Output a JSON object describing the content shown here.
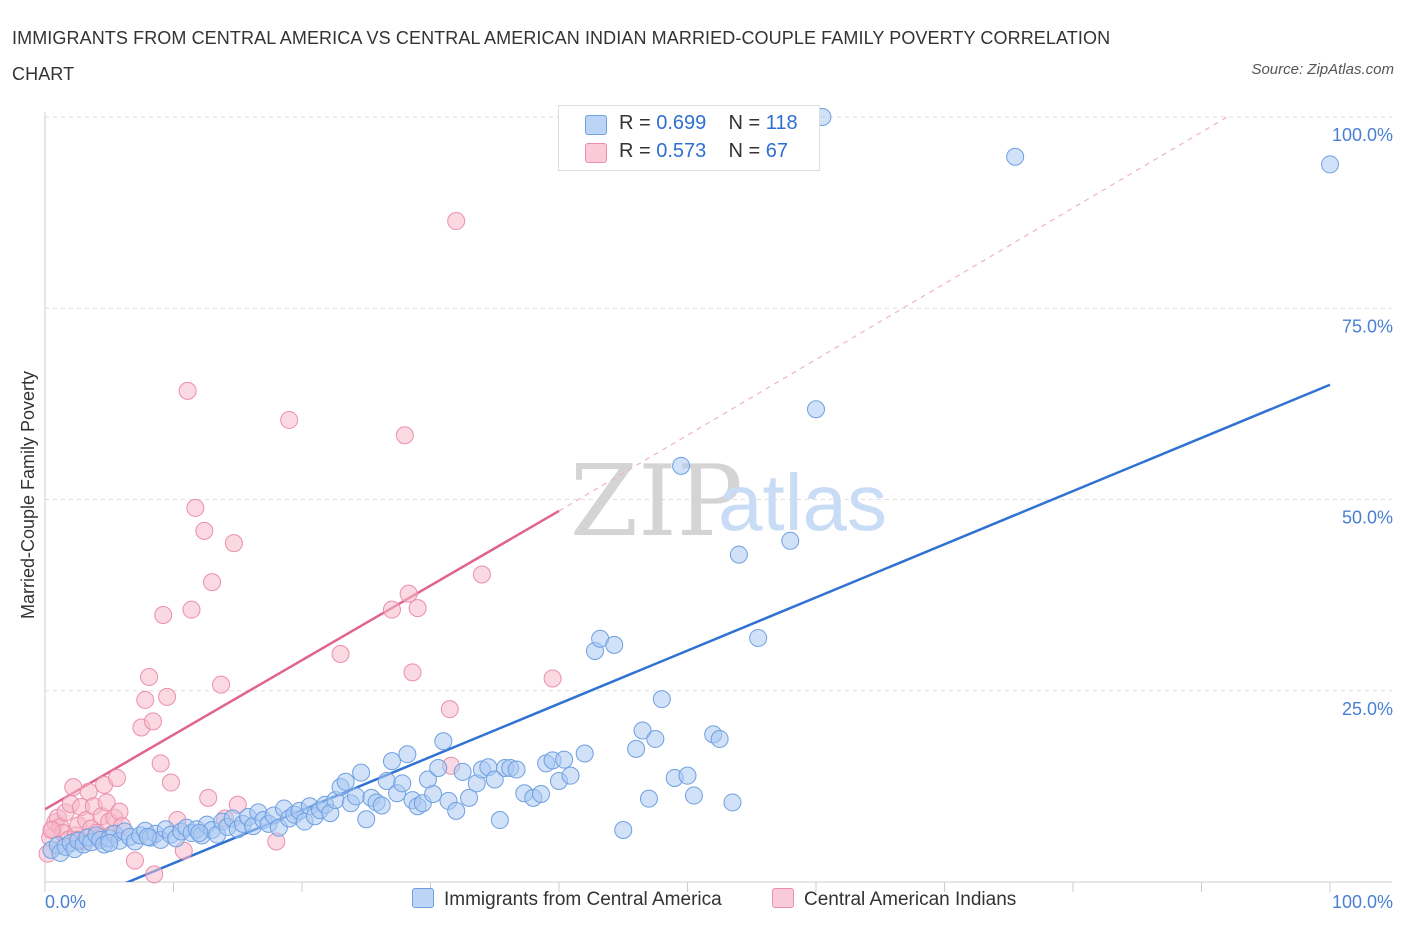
{
  "title": "IMMIGRANTS FROM CENTRAL AMERICA VS CENTRAL AMERICAN INDIAN MARRIED-COUPLE FAMILY POVERTY CORRELATION CHART",
  "source": "Source: ZipAtlas.com",
  "watermark": "ZIPatlas",
  "colors": {
    "blue_fill": "#a9c8f2",
    "blue_stroke": "#6fa0e0",
    "blue_line": "#2f72d3",
    "pink_fill": "#f6b9cc",
    "pink_stroke": "#ec8fac",
    "pink_line": "#e0648e",
    "tick_text": "#4a7fd4",
    "grid": "#dddddd"
  },
  "legend": {
    "rows": [
      {
        "r_label": "R =",
        "r_value": "0.699",
        "n_label": "N =",
        "n_value": "118",
        "series": "blue"
      },
      {
        "r_label": "R =",
        "r_value": "0.573",
        "n_label": "N =",
        "n_value": "67",
        "series": "pink"
      }
    ]
  },
  "bottom_legend": {
    "items": [
      "Immigrants from Central America",
      "Central American Indians"
    ]
  },
  "chart_data": {
    "type": "scatter",
    "title": "IMMIGRANTS FROM CENTRAL AMERICA VS CENTRAL AMERICAN INDIAN MARRIED-COUPLE FAMILY POVERTY CORRELATION CHART",
    "xlabel": "",
    "ylabel": "Married-Couple Family Poverty",
    "xlim": [
      0,
      100
    ],
    "ylim": [
      0,
      100
    ],
    "x_tick_labels": [
      "0.0%",
      "100.0%"
    ],
    "y_ticks": [
      25,
      50,
      75,
      100
    ],
    "y_tick_labels": [
      "25.0%",
      "50.0%",
      "75.0%",
      "100.0%"
    ],
    "grid": true,
    "legend_position": "top-center",
    "series": [
      {
        "name": "Immigrants from Central America",
        "color": "#a9c8f2",
        "R": 0.699,
        "N": 118,
        "trend": {
          "x": [
            0,
            100
          ],
          "y": [
            -4.5,
            65
          ]
        },
        "points": [
          [
            0.5,
            4.2
          ],
          [
            1,
            4.8
          ],
          [
            1.2,
            3.8
          ],
          [
            1.6,
            4.6
          ],
          [
            2,
            5.1
          ],
          [
            2.3,
            4.3
          ],
          [
            2.6,
            5.4
          ],
          [
            3,
            4.9
          ],
          [
            3.3,
            5.8
          ],
          [
            3.6,
            5.2
          ],
          [
            4,
            6.1
          ],
          [
            4.3,
            5.5
          ],
          [
            4.6,
            4.9
          ],
          [
            5,
            5.7
          ],
          [
            5.4,
            6.3
          ],
          [
            5.8,
            5.4
          ],
          [
            6.2,
            6.6
          ],
          [
            6.6,
            5.9
          ],
          [
            7,
            5.3
          ],
          [
            7.4,
            6.1
          ],
          [
            7.8,
            6.7
          ],
          [
            8.2,
            5.8
          ],
          [
            8.6,
            6.3
          ],
          [
            9,
            5.5
          ],
          [
            9.4,
            6.9
          ],
          [
            9.8,
            6.2
          ],
          [
            10.2,
            5.7
          ],
          [
            10.6,
            6.6
          ],
          [
            11,
            7.1
          ],
          [
            11.4,
            6.4
          ],
          [
            11.8,
            6.9
          ],
          [
            12.2,
            6.1
          ],
          [
            12.6,
            7.5
          ],
          [
            13,
            6.8
          ],
          [
            13.4,
            6.2
          ],
          [
            13.8,
            7.9
          ],
          [
            14.2,
            7.2
          ],
          [
            14.6,
            8.3
          ],
          [
            15,
            6.9
          ],
          [
            15.4,
            7.6
          ],
          [
            15.8,
            8.5
          ],
          [
            16.2,
            7.3
          ],
          [
            16.6,
            9.1
          ],
          [
            17,
            8.1
          ],
          [
            17.4,
            7.6
          ],
          [
            17.8,
            8.7
          ],
          [
            18.2,
            7.1
          ],
          [
            18.6,
            9.6
          ],
          [
            19,
            8.3
          ],
          [
            19.4,
            8.8
          ],
          [
            19.8,
            9.3
          ],
          [
            20.2,
            7.9
          ],
          [
            20.6,
            9.9
          ],
          [
            21,
            8.6
          ],
          [
            21.4,
            9.4
          ],
          [
            21.8,
            10.1
          ],
          [
            22.2,
            9.0
          ],
          [
            22.6,
            10.7
          ],
          [
            23,
            12.4
          ],
          [
            23.4,
            13.1
          ],
          [
            23.8,
            10.3
          ],
          [
            24.2,
            11.2
          ],
          [
            24.6,
            14.3
          ],
          [
            25,
            8.2
          ],
          [
            25.4,
            11.0
          ],
          [
            25.8,
            10.4
          ],
          [
            26.2,
            10.0
          ],
          [
            26.6,
            13.2
          ],
          [
            27,
            15.8
          ],
          [
            27.4,
            11.6
          ],
          [
            27.8,
            12.9
          ],
          [
            28.2,
            16.7
          ],
          [
            28.6,
            10.7
          ],
          [
            29,
            9.9
          ],
          [
            29.4,
            10.3
          ],
          [
            29.8,
            13.4
          ],
          [
            30.2,
            11.5
          ],
          [
            30.6,
            14.9
          ],
          [
            31,
            18.4
          ],
          [
            31.4,
            10.6
          ],
          [
            32,
            9.3
          ],
          [
            32.5,
            14.4
          ],
          [
            33,
            11.0
          ],
          [
            33.6,
            12.9
          ],
          [
            34,
            14.7
          ],
          [
            34.5,
            15.0
          ],
          [
            35,
            13.4
          ],
          [
            35.4,
            8.1
          ],
          [
            35.8,
            14.9
          ],
          [
            36.2,
            14.9
          ],
          [
            36.7,
            14.7
          ],
          [
            37.3,
            11.6
          ],
          [
            38,
            11.0
          ],
          [
            38.6,
            11.5
          ],
          [
            39,
            15.5
          ],
          [
            39.5,
            15.9
          ],
          [
            40,
            13.2
          ],
          [
            40.4,
            16.0
          ],
          [
            40.9,
            13.9
          ],
          [
            42,
            16.8
          ],
          [
            42.8,
            30.2
          ],
          [
            43.2,
            31.8
          ],
          [
            44.3,
            31.0
          ],
          [
            45,
            6.8
          ],
          [
            46,
            17.4
          ],
          [
            46.5,
            19.8
          ],
          [
            47,
            10.9
          ],
          [
            47.5,
            18.7
          ],
          [
            48,
            23.9
          ],
          [
            49,
            13.6
          ],
          [
            49.5,
            54.4
          ],
          [
            50,
            13.9
          ],
          [
            50.5,
            11.3
          ],
          [
            52,
            19.3
          ],
          [
            52.5,
            18.7
          ],
          [
            53.5,
            10.4
          ],
          [
            54,
            42.8
          ],
          [
            55.5,
            31.9
          ],
          [
            58,
            44.6
          ],
          [
            60,
            61.8
          ],
          [
            55.5,
            100
          ],
          [
            58,
            100
          ],
          [
            60.5,
            100
          ],
          [
            75.5,
            94.8
          ],
          [
            100,
            93.8
          ],
          [
            5,
            5.1
          ],
          [
            8,
            5.9
          ],
          [
            12,
            6.4
          ]
        ]
      },
      {
        "name": "Central American Indians",
        "color": "#f6b9cc",
        "R": 0.573,
        "N": 67,
        "trend": {
          "x": [
            0,
            40
          ],
          "y": [
            9.5,
            48.5
          ]
        },
        "trend_dashed": {
          "x": [
            40,
            92
          ],
          "y": [
            48.5,
            100
          ]
        },
        "points": [
          [
            0.2,
            3.7
          ],
          [
            0.4,
            5.8
          ],
          [
            0.6,
            6.9
          ],
          [
            0.8,
            7.8
          ],
          [
            1,
            8.4
          ],
          [
            1.2,
            7.2
          ],
          [
            1.4,
            6.4
          ],
          [
            1.6,
            9.1
          ],
          [
            1.8,
            5.5
          ],
          [
            2,
            10.2
          ],
          [
            2.2,
            12.4
          ],
          [
            2.4,
            6.1
          ],
          [
            2.6,
            7.4
          ],
          [
            2.8,
            9.8
          ],
          [
            3,
            5.3
          ],
          [
            3.2,
            8.1
          ],
          [
            3.4,
            11.8
          ],
          [
            3.6,
            7.0
          ],
          [
            3.8,
            9.9
          ],
          [
            4,
            6.4
          ],
          [
            4.2,
            5.8
          ],
          [
            4.4,
            8.6
          ],
          [
            4.6,
            12.7
          ],
          [
            4.8,
            10.4
          ],
          [
            5,
            7.9
          ],
          [
            5.2,
            6.2
          ],
          [
            5.4,
            8.4
          ],
          [
            5.6,
            13.6
          ],
          [
            5.8,
            9.2
          ],
          [
            6,
            7.3
          ],
          [
            2.5,
            5.5
          ],
          [
            0.5,
            6.8
          ],
          [
            7,
            2.8
          ],
          [
            7.5,
            20.2
          ],
          [
            7.8,
            23.8
          ],
          [
            8.1,
            26.8
          ],
          [
            8.4,
            21.0
          ],
          [
            9,
            15.5
          ],
          [
            9.2,
            34.9
          ],
          [
            9.5,
            24.2
          ],
          [
            9.8,
            13.0
          ],
          [
            10.3,
            8.1
          ],
          [
            10.8,
            4.1
          ],
          [
            11.1,
            64.2
          ],
          [
            11.4,
            35.6
          ],
          [
            11.7,
            48.9
          ],
          [
            12.4,
            45.9
          ],
          [
            12.7,
            11.0
          ],
          [
            13,
            39.2
          ],
          [
            13.7,
            25.8
          ],
          [
            14,
            8.3
          ],
          [
            14.7,
            44.3
          ],
          [
            15,
            10.1
          ],
          [
            18,
            5.3
          ],
          [
            19,
            60.4
          ],
          [
            23,
            29.8
          ],
          [
            27,
            35.6
          ],
          [
            28,
            58.4
          ],
          [
            28.3,
            37.7
          ],
          [
            28.6,
            27.4
          ],
          [
            29,
            35.8
          ],
          [
            31.5,
            22.6
          ],
          [
            31.6,
            15.2
          ],
          [
            32,
            86.4
          ],
          [
            34,
            40.2
          ],
          [
            39.5,
            26.6
          ],
          [
            8.5,
            1.0
          ]
        ]
      }
    ]
  }
}
